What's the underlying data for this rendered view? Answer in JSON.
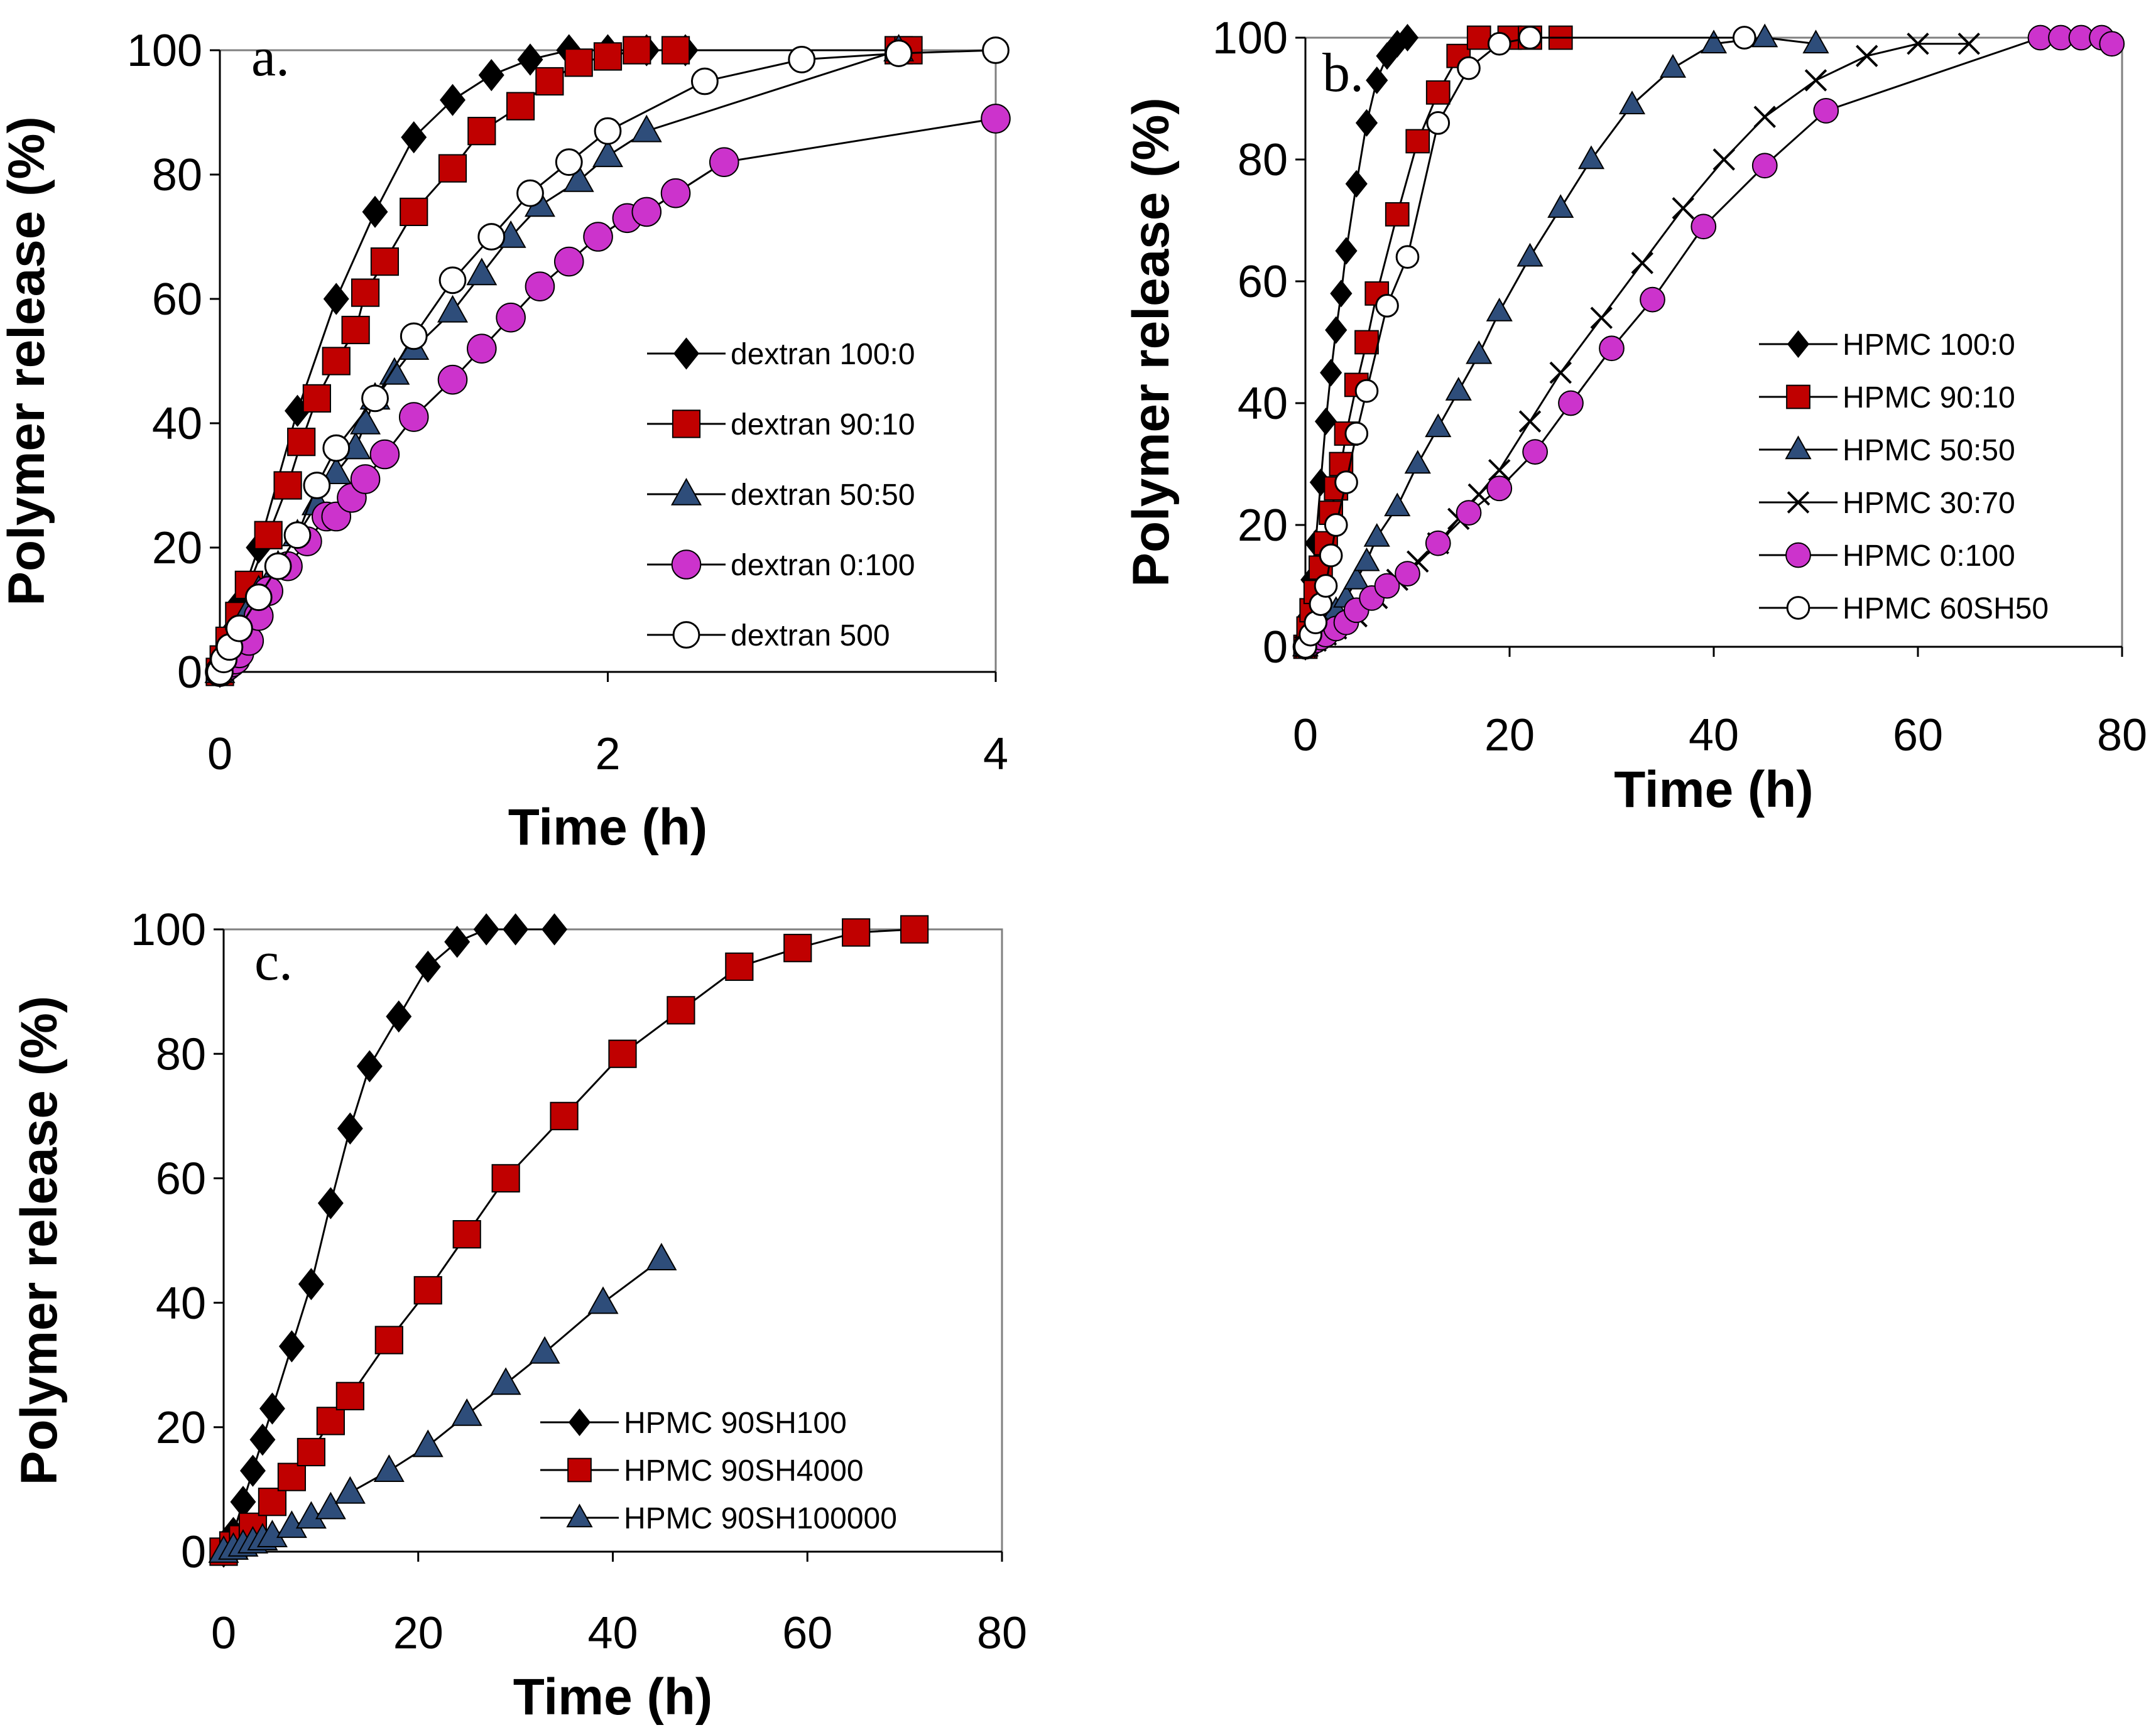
{
  "colors": {
    "black": "#000000",
    "red": "#c00000",
    "blue": "#2e4d7a",
    "magenta": "#cc33cc",
    "white": "#ffffff"
  },
  "chart_data": [
    {
      "type": "line",
      "panel_label": "a.",
      "xlabel": "Time (h)",
      "ylabel": "Polymer release (%)",
      "xlim": [
        0,
        4
      ],
      "ylim": [
        0,
        100
      ],
      "xticks": [
        0,
        2,
        4
      ],
      "yticks": [
        0,
        20,
        40,
        60,
        80,
        100
      ],
      "legend_position": "center-right",
      "series": [
        {
          "name": "dextran 100:0",
          "marker": "diamond",
          "color": "#000000",
          "x": [
            0,
            0.02,
            0.05,
            0.1,
            0.2,
            0.4,
            0.6,
            0.8,
            1.0,
            1.2,
            1.4,
            1.6,
            1.8,
            2.0,
            2.2,
            2.4
          ],
          "y": [
            0,
            3,
            6,
            11,
            20,
            42,
            60,
            74,
            86,
            92,
            96,
            98.5,
            100,
            100,
            100,
            100
          ]
        },
        {
          "name": "dextran 90:10",
          "marker": "square",
          "color": "#c00000",
          "x": [
            0,
            0.02,
            0.05,
            0.1,
            0.15,
            0.25,
            0.35,
            0.42,
            0.5,
            0.6,
            0.7,
            0.75,
            0.85,
            1.0,
            1.2,
            1.35,
            1.55,
            1.7,
            1.85,
            2.0,
            2.15,
            2.35,
            3.5,
            3.55
          ],
          "y": [
            0,
            2,
            5,
            9,
            14,
            22,
            30,
            37,
            44,
            50,
            55,
            61,
            66,
            74,
            81,
            87,
            91,
            95,
            98,
            99,
            100,
            100,
            100,
            100
          ]
        },
        {
          "name": "dextran 50:50",
          "marker": "triangle",
          "color": "#2e4d7a",
          "x": [
            0,
            0.02,
            0.05,
            0.1,
            0.15,
            0.2,
            0.3,
            0.4,
            0.5,
            0.6,
            0.7,
            0.75,
            0.8,
            0.9,
            1.0,
            1.2,
            1.35,
            1.5,
            1.65,
            1.85,
            2.0,
            2.2,
            3.5
          ],
          "y": [
            0,
            2,
            4,
            7,
            10,
            13,
            17,
            22,
            27,
            32,
            36,
            40,
            44,
            48,
            52,
            58,
            64,
            70,
            75,
            79,
            83,
            87,
            100
          ]
        },
        {
          "name": "dextran 0:100",
          "marker": "circle-filled",
          "color": "#cc33cc",
          "x": [
            0,
            0.02,
            0.04,
            0.06,
            0.08,
            0.1,
            0.15,
            0.2,
            0.25,
            0.35,
            0.45,
            0.55,
            0.6,
            0.68,
            0.75,
            0.85,
            1.0,
            1.2,
            1.35,
            1.5,
            1.65,
            1.8,
            1.95,
            2.1,
            2.2,
            2.35,
            2.6,
            4.0
          ],
          "y": [
            0,
            0.5,
            1,
            1.5,
            2,
            3,
            5,
            9,
            13,
            17,
            21,
            25,
            25,
            28,
            31,
            35,
            41,
            47,
            52,
            57,
            62,
            66,
            70,
            73,
            74,
            77,
            82,
            89
          ]
        },
        {
          "name": "dextran 500",
          "marker": "circle-open",
          "color": "#000000",
          "x": [
            0,
            0.02,
            0.05,
            0.1,
            0.2,
            0.3,
            0.4,
            0.5,
            0.6,
            0.8,
            1.0,
            1.2,
            1.4,
            1.6,
            1.8,
            2.0,
            2.5,
            3.0,
            3.5,
            4.0
          ],
          "y": [
            0,
            2,
            4,
            7,
            12,
            17,
            22,
            30,
            36,
            44,
            54,
            63,
            70,
            77,
            82,
            87,
            95,
            98.5,
            99.5,
            100
          ]
        }
      ]
    },
    {
      "type": "line",
      "panel_label": "b.",
      "xlabel": "Time (h)",
      "ylabel": "Polymer release (%)",
      "xlim": [
        0,
        80
      ],
      "ylim": [
        0,
        100
      ],
      "xticks": [
        0,
        20,
        40,
        60,
        80
      ],
      "yticks": [
        0,
        20,
        40,
        60,
        80,
        100
      ],
      "legend_position": "center-right",
      "series": [
        {
          "name": "HPMC 100:0",
          "marker": "diamond",
          "color": "#000000",
          "x": [
            0,
            0.3,
            0.6,
            1,
            1.5,
            2,
            2.5,
            3,
            3.5,
            4,
            5,
            6,
            7,
            8,
            9,
            10
          ],
          "y": [
            0,
            5,
            11,
            17,
            27,
            37,
            45,
            52,
            58,
            65,
            76,
            86,
            93,
            97,
            99,
            100
          ]
        },
        {
          "name": "HPMC 90:10",
          "marker": "square",
          "color": "#c00000",
          "x": [
            0,
            0.3,
            0.6,
            1,
            1.5,
            2,
            2.5,
            3,
            3.5,
            4,
            5,
            6,
            7,
            9,
            11,
            13,
            15,
            17,
            20,
            22,
            25
          ],
          "y": [
            0,
            3,
            6,
            9,
            13,
            17,
            22,
            26,
            30,
            35,
            43,
            50,
            58,
            71,
            83,
            91,
            97,
            100,
            100,
            100,
            100
          ]
        },
        {
          "name": "HPMC 50:50",
          "marker": "triangle",
          "color": "#2e4d7a",
          "x": [
            0,
            0.5,
            1,
            2,
            3,
            4,
            5,
            6,
            7,
            9,
            11,
            13,
            15,
            17,
            19,
            22,
            25,
            28,
            32,
            36,
            40,
            45,
            50
          ],
          "y": [
            0,
            1,
            2,
            4,
            6,
            8,
            11,
            14,
            18,
            23,
            30,
            36,
            42,
            48,
            55,
            64,
            72,
            80,
            89,
            95,
            99,
            100,
            99
          ]
        },
        {
          "name": "HPMC 30:70",
          "marker": "x",
          "color": "#000000",
          "x": [
            0,
            1,
            2,
            3,
            5,
            7,
            9,
            11,
            13,
            15,
            17,
            19,
            22,
            25,
            29,
            33,
            37,
            41,
            45,
            50,
            55,
            60,
            65
          ],
          "y": [
            0,
            1,
            2,
            3,
            5,
            8,
            11,
            14,
            17,
            21,
            25,
            29,
            37,
            45,
            54,
            63,
            72,
            80,
            87,
            93,
            97,
            99,
            99
          ]
        },
        {
          "name": "HPMC 0:100",
          "marker": "circle-filled",
          "color": "#cc33cc",
          "x": [
            0,
            0.5,
            1,
            1.5,
            2,
            3,
            4,
            5,
            6.5,
            8,
            10,
            13,
            16,
            19,
            22.5,
            26,
            30,
            34,
            39,
            45,
            51,
            72,
            74,
            76,
            78,
            79
          ],
          "y": [
            0,
            0.5,
            1,
            1.5,
            2,
            3,
            4,
            6,
            8,
            10,
            12,
            17,
            22,
            26,
            32,
            40,
            49,
            57,
            69,
            79,
            88,
            100,
            100,
            100,
            100,
            99
          ]
        },
        {
          "name": "HPMC  60SH50",
          "marker": "circle-open",
          "color": "#000000",
          "x": [
            0,
            0.5,
            1,
            1.5,
            2,
            2.5,
            3,
            4,
            5,
            6,
            8,
            10,
            13,
            16,
            19,
            22,
            43
          ],
          "y": [
            0,
            2,
            4,
            7,
            10,
            15,
            20,
            27,
            35,
            42,
            56,
            64,
            86,
            95,
            99,
            100,
            100
          ]
        }
      ]
    },
    {
      "type": "line",
      "panel_label": "c.",
      "xlabel": "Time (h)",
      "ylabel": "Polymer release (%)",
      "xlim": [
        0,
        80
      ],
      "ylim": [
        0,
        100
      ],
      "xticks": [
        0,
        20,
        40,
        60,
        80
      ],
      "yticks": [
        0,
        20,
        40,
        60,
        80,
        100
      ],
      "legend_position": "bottom-right",
      "series": [
        {
          "name": "HPMC  90SH100",
          "marker": "diamond",
          "color": "#000000",
          "x": [
            0,
            1,
            2,
            3,
            4,
            5,
            7,
            9,
            11,
            13,
            15,
            18,
            21,
            24,
            27,
            30,
            34
          ],
          "y": [
            0,
            3,
            8,
            13,
            18,
            23,
            33,
            43,
            56,
            68,
            78,
            86,
            94,
            98,
            100,
            100,
            100
          ]
        },
        {
          "name": "HPMC  90SH4000",
          "marker": "square",
          "color": "#c00000",
          "x": [
            0,
            1,
            2,
            3,
            5,
            7,
            9,
            11,
            13,
            17,
            21,
            25,
            29,
            35,
            41,
            47,
            53,
            59,
            65,
            71
          ],
          "y": [
            0,
            1,
            2,
            4,
            8,
            12,
            16,
            21,
            25,
            34,
            42,
            51,
            60,
            70,
            80,
            87,
            94,
            97,
            99.5,
            100
          ]
        },
        {
          "name": "HPMC  90SH100000",
          "marker": "triangle",
          "color": "#2e4d7a",
          "x": [
            0,
            1,
            2,
            3,
            4,
            5,
            7,
            9,
            11,
            13,
            17,
            21,
            25,
            29,
            33,
            39,
            45
          ],
          "y": [
            0,
            0.5,
            1,
            1.5,
            2,
            2.5,
            4,
            5.5,
            7,
            9.5,
            13,
            17,
            22,
            27,
            32,
            40,
            47
          ]
        }
      ]
    }
  ]
}
